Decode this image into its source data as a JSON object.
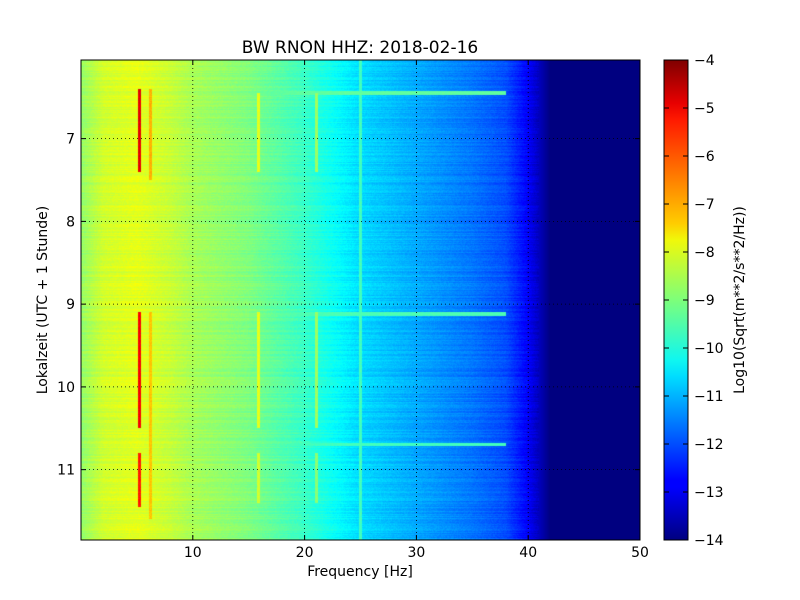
{
  "chart_data": {
    "type": "heatmap",
    "title": "BW RNON HHZ: 2018-02-16",
    "xlabel": "Frequency [Hz]",
    "ylabel": "Lokalzeit (UTC + 1 Stunde)",
    "xlim": [
      0,
      50
    ],
    "ylim": [
      6.05,
      11.85
    ],
    "x_ticks": [
      10,
      20,
      30,
      40,
      50
    ],
    "y_ticks": [
      7,
      8,
      9,
      10,
      11
    ],
    "grid": true,
    "colorbar": {
      "label": "Log10(Sqrt(m**2/s**2/Hz))",
      "range": [
        -14,
        -4
      ],
      "ticks": [
        -4,
        -5,
        -6,
        -7,
        -8,
        -9,
        -10,
        -11,
        -12,
        -13,
        -14
      ],
      "colormap": "jet"
    },
    "spectrum_profile": {
      "freq_hz": [
        0,
        2,
        5,
        8,
        10,
        15,
        20,
        25,
        30,
        35,
        38,
        40,
        41,
        42,
        50
      ],
      "log_psd": [
        -8.8,
        -8.2,
        -8.0,
        -8.3,
        -8.6,
        -9.0,
        -9.7,
        -10.6,
        -11.1,
        -11.6,
        -12.0,
        -12.8,
        -13.4,
        -14.0,
        -14.0
      ]
    },
    "line_features": [
      {
        "freq_hz": 5.2,
        "t_start": 6.4,
        "t_end": 7.4,
        "log_psd": -5.0
      },
      {
        "freq_hz": 5.2,
        "t_start": 9.1,
        "t_end": 10.5,
        "log_psd": -5.2
      },
      {
        "freq_hz": 5.2,
        "t_start": 10.8,
        "t_end": 11.45,
        "log_psd": -5.5
      },
      {
        "freq_hz": 6.2,
        "t_start": 6.4,
        "t_end": 7.5,
        "log_psd": -7.0
      },
      {
        "freq_hz": 6.2,
        "t_start": 9.1,
        "t_end": 11.6,
        "log_psd": -7.2
      },
      {
        "freq_hz": 15.9,
        "t_start": 6.45,
        "t_end": 7.4,
        "log_psd": -8.0
      },
      {
        "freq_hz": 15.9,
        "t_start": 9.1,
        "t_end": 10.5,
        "log_psd": -8.0
      },
      {
        "freq_hz": 15.9,
        "t_start": 10.8,
        "t_end": 11.4,
        "log_psd": -8.2
      },
      {
        "freq_hz": 21.1,
        "t_start": 6.45,
        "t_end": 7.4,
        "log_psd": -8.7
      },
      {
        "freq_hz": 21.1,
        "t_start": 9.1,
        "t_end": 10.5,
        "log_psd": -8.7
      },
      {
        "freq_hz": 21.1,
        "t_start": 10.8,
        "t_end": 11.4,
        "log_psd": -8.9
      },
      {
        "freq_hz": 25.0,
        "t_start": 6.05,
        "t_end": 11.85,
        "log_psd": -9.6
      }
    ],
    "band_features": [
      {
        "t_start": 6.42,
        "t_end": 6.47,
        "log_psd": -9.3
      },
      {
        "t_start": 9.1,
        "t_end": 9.14,
        "log_psd": -9.5
      },
      {
        "t_start": 10.68,
        "t_end": 10.72,
        "log_psd": -9.6
      }
    ]
  }
}
